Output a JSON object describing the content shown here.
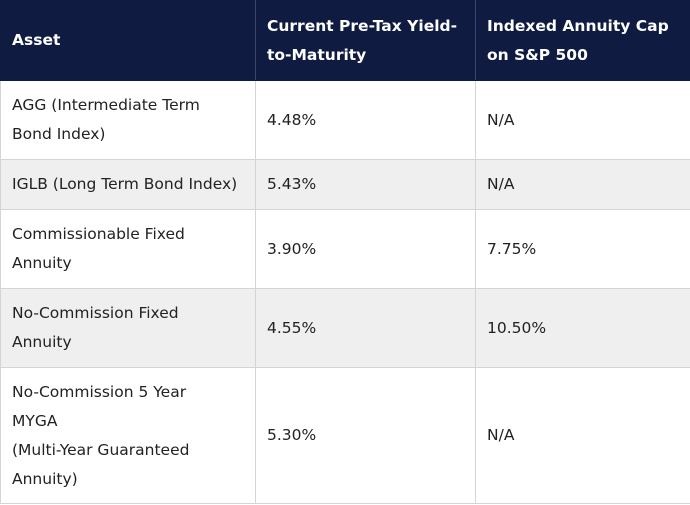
{
  "table": {
    "headers": [
      [
        "Asset"
      ],
      [
        "Current Pre-Tax Yield-",
        "to-Maturity"
      ],
      [
        "Indexed Annuity Cap",
        "on S&P 500"
      ]
    ],
    "rows": [
      {
        "asset": [
          "AGG (Intermediate Term",
          "Bond Index)"
        ],
        "yield": "4.48%",
        "cap": "N/A"
      },
      {
        "asset": [
          "IGLB (Long Term Bond Index)"
        ],
        "yield": "5.43%",
        "cap": "N/A"
      },
      {
        "asset": [
          "Commissionable Fixed",
          "Annuity"
        ],
        "yield": "3.90%",
        "cap": "7.75%"
      },
      {
        "asset": [
          "No-Commission Fixed",
          "Annuity"
        ],
        "yield": "4.55%",
        "cap": "10.50%"
      },
      {
        "asset": [
          "No-Commission 5 Year",
          "MYGA",
          "(Multi-Year Guaranteed",
          "Annuity)"
        ],
        "yield": "5.30%",
        "cap": "N/A"
      }
    ]
  },
  "colors": {
    "header_bg": "#0f1b41",
    "header_text": "#ffffff",
    "stripe_bg": "#efefef",
    "border": "#d4d4d4"
  }
}
